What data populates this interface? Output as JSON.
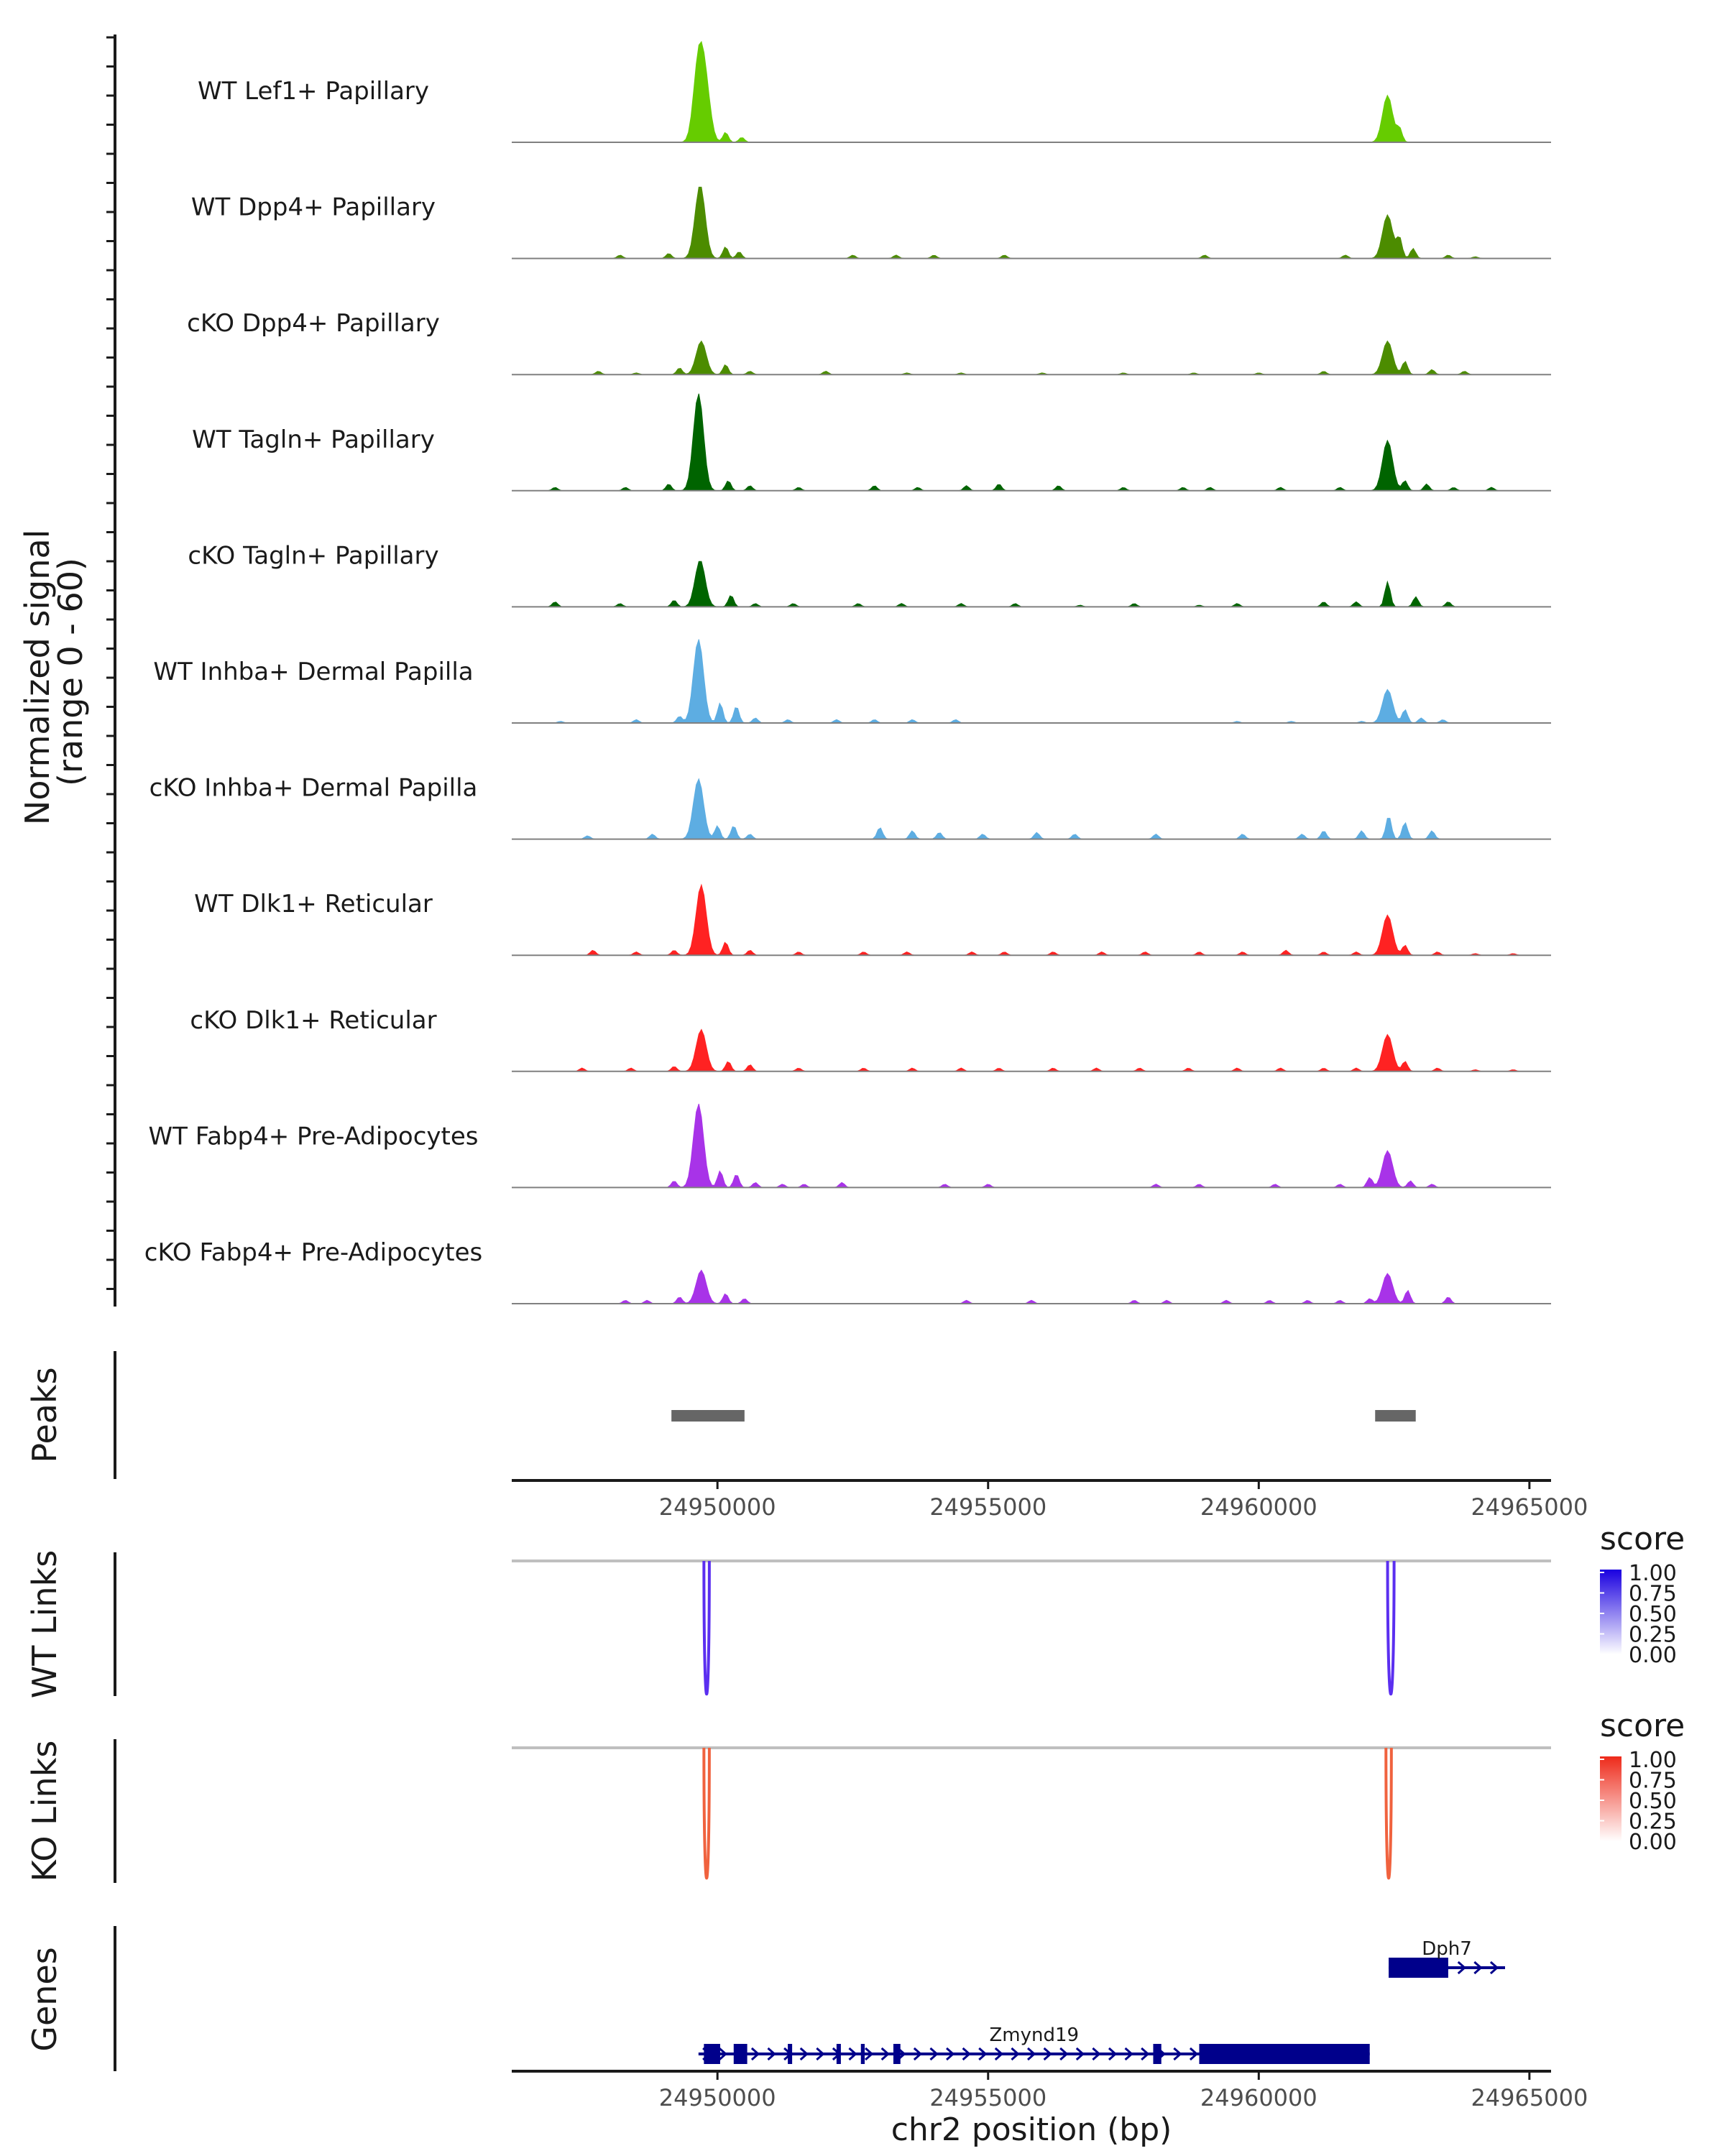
{
  "chart_data": {
    "type": "area",
    "chromosome": "chr2",
    "xlim": [
      24946200,
      24965400
    ],
    "coverage": {
      "ylabel_line1": "Normalized signal",
      "ylabel_line2": "(range 0 - 60)",
      "ylim": [
        0,
        60
      ],
      "tracks": [
        {
          "name": "WT Lef1+ Papillary",
          "color": "#66CC00",
          "peaks": [
            [
              24949650,
              46
            ],
            [
              24949780,
              30
            ],
            [
              24950150,
              6
            ],
            [
              24950450,
              3
            ],
            [
              24962380,
              28
            ],
            [
              24962600,
              8
            ]
          ]
        },
        {
          "name": "WT Dpp4+ Papillary",
          "color": "#4C8C00",
          "peaks": [
            [
              24948200,
              2
            ],
            [
              24949100,
              3
            ],
            [
              24949680,
              44
            ],
            [
              24950150,
              7
            ],
            [
              24950400,
              4
            ],
            [
              24952500,
              2
            ],
            [
              24953300,
              2
            ],
            [
              24954000,
              2
            ],
            [
              24955300,
              2
            ],
            [
              24959000,
              2
            ],
            [
              24961600,
              2
            ],
            [
              24962380,
              26
            ],
            [
              24962600,
              12
            ],
            [
              24962850,
              6
            ],
            [
              24963500,
              2
            ],
            [
              24964000,
              1
            ]
          ]
        },
        {
          "name": "cKO Dpp4+ Papillary",
          "color": "#4C8C00",
          "peaks": [
            [
              24947800,
              2
            ],
            [
              24948500,
              1
            ],
            [
              24949300,
              4
            ],
            [
              24949700,
              20
            ],
            [
              24950150,
              6
            ],
            [
              24950600,
              2
            ],
            [
              24952000,
              2
            ],
            [
              24953500,
              1
            ],
            [
              24954500,
              1
            ],
            [
              24956000,
              1
            ],
            [
              24957500,
              1
            ],
            [
              24958800,
              1
            ],
            [
              24960000,
              1
            ],
            [
              24961200,
              2
            ],
            [
              24962380,
              20
            ],
            [
              24962700,
              8
            ],
            [
              24963200,
              3
            ],
            [
              24963800,
              2
            ]
          ]
        },
        {
          "name": "WT Tagln+ Papillary",
          "color": "#006400",
          "peaks": [
            [
              24947000,
              2
            ],
            [
              24948300,
              2
            ],
            [
              24949100,
              4
            ],
            [
              24949650,
              58
            ],
            [
              24950200,
              6
            ],
            [
              24950600,
              3
            ],
            [
              24951500,
              2
            ],
            [
              24952900,
              3
            ],
            [
              24953700,
              2
            ],
            [
              24954600,
              3
            ],
            [
              24955200,
              4
            ],
            [
              24956300,
              3
            ],
            [
              24957500,
              2
            ],
            [
              24958600,
              2
            ],
            [
              24959100,
              2
            ],
            [
              24960400,
              2
            ],
            [
              24961500,
              2
            ],
            [
              24962380,
              30
            ],
            [
              24962700,
              6
            ],
            [
              24963100,
              4
            ],
            [
              24963600,
              2
            ],
            [
              24964300,
              2
            ]
          ]
        },
        {
          "name": "cKO Tagln+ Papillary",
          "color": "#006400",
          "peaks": [
            [
              24947000,
              3
            ],
            [
              24948200,
              2
            ],
            [
              24949200,
              4
            ],
            [
              24949680,
              28
            ],
            [
              24950250,
              7
            ],
            [
              24950700,
              2
            ],
            [
              24951400,
              2
            ],
            [
              24952600,
              2
            ],
            [
              24953400,
              2
            ],
            [
              24954500,
              2
            ],
            [
              24955500,
              2
            ],
            [
              24956700,
              1
            ],
            [
              24957700,
              2
            ],
            [
              24958900,
              1
            ],
            [
              24959600,
              2
            ],
            [
              24961200,
              3
            ],
            [
              24961800,
              3
            ],
            [
              24962380,
              15
            ],
            [
              24962900,
              6
            ],
            [
              24963500,
              3
            ]
          ]
        },
        {
          "name": "WT Inhba+ Dermal Papilla",
          "color": "#5DADE2",
          "peaks": [
            [
              24947100,
              1
            ],
            [
              24948500,
              2
            ],
            [
              24949300,
              4
            ],
            [
              24949650,
              50
            ],
            [
              24950050,
              12
            ],
            [
              24950350,
              10
            ],
            [
              24950700,
              3
            ],
            [
              24951300,
              2
            ],
            [
              24952200,
              2
            ],
            [
              24952900,
              2
            ],
            [
              24953600,
              2
            ],
            [
              24954400,
              2
            ],
            [
              24959600,
              1
            ],
            [
              24960600,
              1
            ],
            [
              24961900,
              1
            ],
            [
              24962380,
              20
            ],
            [
              24962700,
              8
            ],
            [
              24963000,
              3
            ],
            [
              24963400,
              2
            ]
          ]
        },
        {
          "name": "cKO Inhba+ Dermal Papilla",
          "color": "#5DADE2",
          "peaks": [
            [
              24947600,
              2
            ],
            [
              24948800,
              3
            ],
            [
              24949650,
              36
            ],
            [
              24950000,
              8
            ],
            [
              24950300,
              8
            ],
            [
              24950600,
              3
            ],
            [
              24953000,
              7
            ],
            [
              24953600,
              5
            ],
            [
              24954100,
              4
            ],
            [
              24954900,
              3
            ],
            [
              24955900,
              4
            ],
            [
              24956600,
              3
            ],
            [
              24958100,
              3
            ],
            [
              24959700,
              3
            ],
            [
              24960800,
              3
            ],
            [
              24961200,
              5
            ],
            [
              24961900,
              5
            ],
            [
              24962400,
              14
            ],
            [
              24962700,
              10
            ],
            [
              24963200,
              5
            ]
          ]
        },
        {
          "name": "WT Dlk1+ Reticular",
          "color": "#FF2222",
          "peaks": [
            [
              24947700,
              3
            ],
            [
              24948500,
              2
            ],
            [
              24949200,
              3
            ],
            [
              24949700,
              42
            ],
            [
              24950150,
              8
            ],
            [
              24950600,
              3
            ],
            [
              24951500,
              2
            ],
            [
              24952700,
              2
            ],
            [
              24953500,
              2
            ],
            [
              24954700,
              2
            ],
            [
              24955300,
              2
            ],
            [
              24956200,
              2
            ],
            [
              24957100,
              2
            ],
            [
              24957900,
              2
            ],
            [
              24958900,
              2
            ],
            [
              24959700,
              2
            ],
            [
              24960500,
              3
            ],
            [
              24961200,
              2
            ],
            [
              24961800,
              2
            ],
            [
              24962380,
              24
            ],
            [
              24962700,
              6
            ],
            [
              24963300,
              2
            ],
            [
              24964000,
              1
            ],
            [
              24964700,
              1
            ]
          ]
        },
        {
          "name": "cKO Dlk1+ Reticular",
          "color": "#FF2222",
          "peaks": [
            [
              24947500,
              2
            ],
            [
              24948400,
              2
            ],
            [
              24949200,
              3
            ],
            [
              24949700,
              25
            ],
            [
              24950200,
              6
            ],
            [
              24950600,
              4
            ],
            [
              24951500,
              2
            ],
            [
              24952700,
              2
            ],
            [
              24953600,
              2
            ],
            [
              24954500,
              2
            ],
            [
              24955200,
              2
            ],
            [
              24956200,
              2
            ],
            [
              24957000,
              2
            ],
            [
              24957800,
              2
            ],
            [
              24958700,
              2
            ],
            [
              24959600,
              2
            ],
            [
              24960400,
              2
            ],
            [
              24961200,
              2
            ],
            [
              24961800,
              2
            ],
            [
              24962380,
              22
            ],
            [
              24962700,
              6
            ],
            [
              24963300,
              2
            ],
            [
              24964000,
              1
            ],
            [
              24964700,
              1
            ]
          ]
        },
        {
          "name": "WT Fabp4+ Pre-Adipocytes",
          "color": "#A833E8",
          "peaks": [
            [
              24949200,
              4
            ],
            [
              24949650,
              50
            ],
            [
              24950050,
              10
            ],
            [
              24950350,
              8
            ],
            [
              24950700,
              3
            ],
            [
              24951200,
              2
            ],
            [
              24951600,
              2
            ],
            [
              24952300,
              3
            ],
            [
              24954200,
              2
            ],
            [
              24955000,
              2
            ],
            [
              24958100,
              2
            ],
            [
              24958900,
              2
            ],
            [
              24960300,
              2
            ],
            [
              24961500,
              2
            ],
            [
              24962050,
              6
            ],
            [
              24962380,
              22
            ],
            [
              24962800,
              4
            ],
            [
              24963200,
              2
            ]
          ]
        },
        {
          "name": "cKO Fabp4+ Pre-Adipocytes",
          "color": "#A833E8",
          "peaks": [
            [
              24948300,
              2
            ],
            [
              24948700,
              2
            ],
            [
              24949300,
              4
            ],
            [
              24949700,
              20
            ],
            [
              24950150,
              6
            ],
            [
              24950500,
              3
            ],
            [
              24954600,
              2
            ],
            [
              24955800,
              2
            ],
            [
              24957700,
              2
            ],
            [
              24958300,
              2
            ],
            [
              24959400,
              2
            ],
            [
              24960200,
              2
            ],
            [
              24960900,
              2
            ],
            [
              24961500,
              2
            ],
            [
              24962050,
              3
            ],
            [
              24962380,
              18
            ],
            [
              24962750,
              8
            ],
            [
              24963500,
              4
            ]
          ]
        }
      ]
    },
    "peaks_track": {
      "ylabel": "Peaks",
      "regions": [
        [
          24949150,
          24950500
        ],
        [
          24962150,
          24962900
        ]
      ],
      "color": "#666666"
    },
    "axis_ticks": [
      24950000,
      24955000,
      24960000,
      24965000
    ],
    "axis_tick_labels": [
      "24950000",
      "24955000",
      "24960000",
      "24965000"
    ],
    "links": [
      {
        "ylabel": "WT Links",
        "legend_title": "score",
        "color": "#5B2FF0",
        "high_color": "#1A00E0",
        "arcs": [
          [
            24949750,
            24949850,
            0.9
          ],
          [
            24962380,
            24962500,
            0.9
          ]
        ]
      },
      {
        "ylabel": "KO Links",
        "legend_title": "score",
        "color": "#F0623E",
        "high_color": "#EE2A1A",
        "arcs": [
          [
            24949750,
            24949850,
            0.8
          ],
          [
            24962350,
            24962450,
            0.8
          ]
        ]
      }
    ],
    "legend_breaks": [
      "1.00",
      "0.75",
      "0.50",
      "0.25",
      "0.00"
    ],
    "genes": {
      "ylabel": "Genes",
      "color": "#00008B",
      "items": [
        {
          "name": "Dph7",
          "start": 24962400,
          "end": 24964550,
          "row": 0,
          "exons": [
            [
              24962400,
              24963500
            ]
          ]
        },
        {
          "name": "Zmynd19",
          "start": 24949650,
          "end": 24962050,
          "row": 1,
          "exons": [
            [
              24949750,
              24950050
            ],
            [
              24950300,
              24950550
            ],
            [
              24951300,
              24951380
            ],
            [
              24952200,
              24952280
            ],
            [
              24952650,
              24952720
            ],
            [
              24953250,
              24953380
            ],
            [
              24958050,
              24958200
            ],
            [
              24958900,
              24962050
            ]
          ]
        }
      ]
    },
    "xlabel": "chr2 position (bp)"
  }
}
